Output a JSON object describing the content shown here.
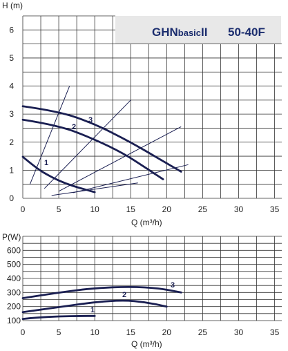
{
  "colors": {
    "curve": "#1a1f52",
    "grid": "#333333",
    "title_box": "#e8e8e8",
    "title_text": "#1b2d6e"
  },
  "chart_data": [
    {
      "type": "line",
      "title_main": "GHNbasicII",
      "title_model": "50-40F",
      "ylabel": "H (m)",
      "xlabel": "Q (m³/h)",
      "xlim": [
        0,
        36
      ],
      "ylim": [
        0,
        6.5
      ],
      "x_ticks": [
        "0",
        "5",
        "10",
        "15",
        "20",
        "25",
        "30",
        "35"
      ],
      "y_ticks": [
        "0",
        "1",
        "2",
        "3",
        "4",
        "5",
        "6"
      ],
      "grid": true,
      "series": [
        {
          "name": "1",
          "x": [
            0,
            2,
            4,
            6,
            8,
            10
          ],
          "y": [
            1.48,
            1.05,
            0.75,
            0.52,
            0.36,
            0.22
          ]
        },
        {
          "name": "2",
          "x": [
            0,
            5,
            10,
            14,
            17,
            19.5
          ],
          "y": [
            2.8,
            2.6,
            2.1,
            1.6,
            1.1,
            0.68
          ]
        },
        {
          "name": "3",
          "x": [
            0,
            5,
            10,
            15,
            19,
            22
          ],
          "y": [
            3.28,
            3.1,
            2.65,
            2.0,
            1.4,
            0.95
          ]
        }
      ],
      "system_curves": [
        {
          "x": [
            1,
            6.5
          ],
          "y": [
            0.5,
            4.0
          ]
        },
        {
          "x": [
            3,
            15
          ],
          "y": [
            0.35,
            3.5
          ]
        },
        {
          "x": [
            5,
            22
          ],
          "y": [
            0.25,
            2.55
          ]
        },
        {
          "x": [
            7,
            23
          ],
          "y": [
            0.2,
            1.2
          ]
        },
        {
          "x": [
            4,
            16
          ],
          "y": [
            0.1,
            0.55
          ]
        }
      ]
    },
    {
      "type": "line",
      "ylabel": "P(W)",
      "xlabel": "Q (m³/h)",
      "xlim": [
        0,
        36
      ],
      "ylim": [
        100,
        700
      ],
      "x_ticks": [
        "0",
        "5",
        "10",
        "15",
        "20",
        "25",
        "30",
        "35"
      ],
      "y_ticks": [
        "100",
        "200",
        "300",
        "400",
        "500",
        "600"
      ],
      "grid": true,
      "series": [
        {
          "name": "1",
          "x": [
            0,
            2,
            5,
            8,
            10
          ],
          "y": [
            112,
            122,
            130,
            133,
            133
          ]
        },
        {
          "name": "2",
          "x": [
            0,
            5,
            10,
            14,
            17,
            20
          ],
          "y": [
            160,
            195,
            232,
            245,
            232,
            200
          ]
        },
        {
          "name": "3",
          "x": [
            0,
            5,
            10,
            15,
            19,
            22
          ],
          "y": [
            260,
            300,
            332,
            342,
            330,
            300
          ]
        }
      ]
    }
  ]
}
